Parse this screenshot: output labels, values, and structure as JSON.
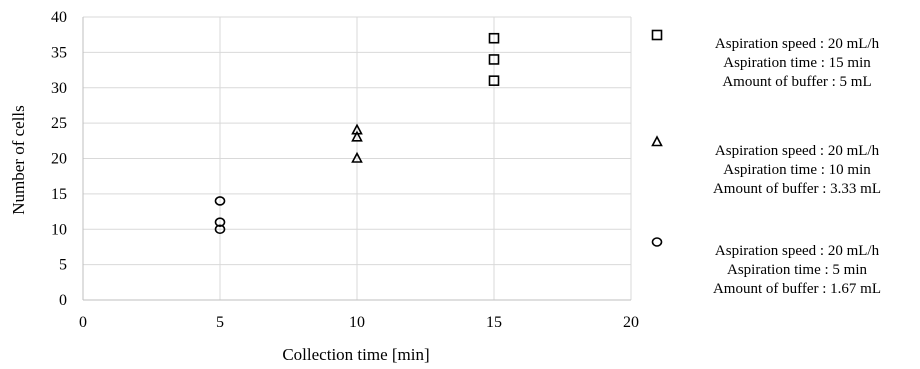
{
  "chart_data": {
    "type": "scatter",
    "title": "",
    "xlabel": "Collection time [min]",
    "ylabel": "Number of cells",
    "xlim": [
      0,
      20
    ],
    "ylim": [
      0,
      40
    ],
    "xticks": [
      "0",
      "5",
      "10",
      "15",
      "20"
    ],
    "yticks": [
      "0",
      "5",
      "10",
      "15",
      "20",
      "25",
      "30",
      "35",
      "40"
    ],
    "grid": true,
    "legend_position": "right",
    "series": [
      {
        "marker": "square",
        "legend": [
          "Aspiration speed : 20 mL/h",
          "Aspiration time : 15 min",
          "Amount of buffer : 5 mL"
        ],
        "points": [
          {
            "x": 15,
            "y": 37
          },
          {
            "x": 15,
            "y": 34
          },
          {
            "x": 15,
            "y": 31
          }
        ]
      },
      {
        "marker": "triangle",
        "legend": [
          "Aspiration speed : 20 mL/h",
          "Aspiration time : 10 min",
          "Amount of buffer : 3.33 mL"
        ],
        "points": [
          {
            "x": 10,
            "y": 24
          },
          {
            "x": 10,
            "y": 23
          },
          {
            "x": 10,
            "y": 20
          }
        ]
      },
      {
        "marker": "circle",
        "legend": [
          "Aspiration speed : 20 mL/h",
          "Aspiration time : 5 min",
          "Amount of buffer : 1.67 mL"
        ],
        "points": [
          {
            "x": 5,
            "y": 14
          },
          {
            "x": 5,
            "y": 11
          },
          {
            "x": 5,
            "y": 10
          }
        ]
      }
    ]
  }
}
